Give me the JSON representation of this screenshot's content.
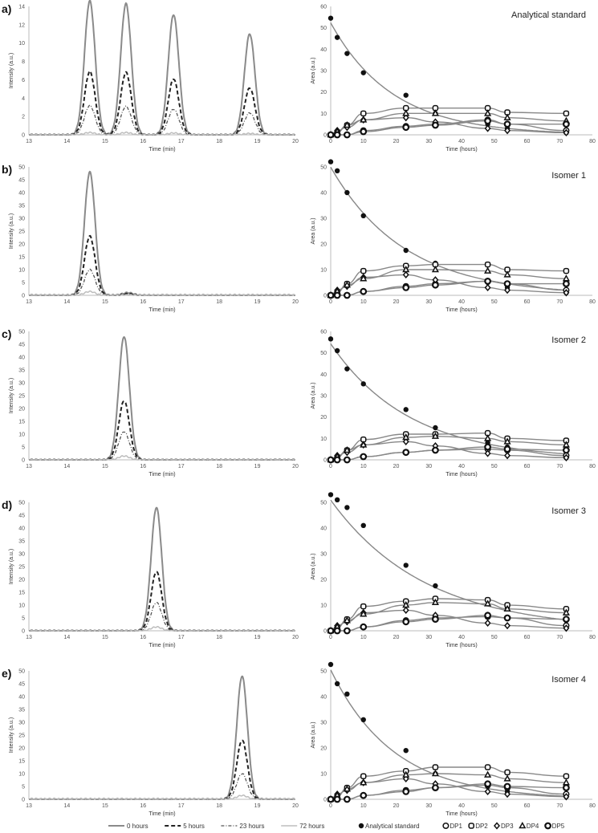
{
  "legend_left": [
    "0 hours",
    "5 hours",
    "23 hours",
    "72 hours"
  ],
  "legend_right": [
    "Analytical standard",
    "DP1",
    "DP2",
    "DP3",
    "DP4",
    "DP5"
  ],
  "colors": {
    "h0": "#8a8a8a",
    "h5": "#222222",
    "h23": "#555555",
    "h72": "#bdbdbd",
    "fit": "#888888",
    "marker": "#111111"
  },
  "chart_data": [
    {
      "type": "line",
      "panel": "a)",
      "xlabel": "Time (min)",
      "ylabel": "Intensity (a.u.)",
      "xlim": [
        13,
        20
      ],
      "ylim": [
        0,
        14
      ],
      "yticks": [
        0,
        2,
        4,
        6,
        8,
        10,
        12,
        14
      ],
      "xticks": [
        13,
        14,
        15,
        16,
        17,
        18,
        19,
        20
      ],
      "peaks": [
        14.6,
        15.55,
        16.8,
        18.8
      ],
      "series": [
        {
          "name": "0 hours",
          "heights": [
            14.6,
            14.3,
            13.1,
            11
          ]
        },
        {
          "name": "5 hours",
          "heights": [
            6.9,
            6.8,
            6.1,
            5.1
          ]
        },
        {
          "name": "23 hours",
          "heights": [
            3.2,
            3.1,
            2.8,
            2.4
          ]
        },
        {
          "name": "72 hours",
          "heights": [
            0.25,
            0.25,
            0.2,
            0.15
          ]
        }
      ]
    },
    {
      "type": "scatter",
      "title": "Analytical standard",
      "xlabel": "Time (hours)",
      "ylabel": "Area (a.u.)",
      "xlim": [
        0,
        80
      ],
      "ylim": [
        0,
        60
      ],
      "yticks": [
        0,
        10,
        20,
        30,
        40,
        50,
        60
      ],
      "xticks": [
        0,
        10,
        20,
        30,
        40,
        50,
        60,
        70,
        80
      ],
      "x": [
        0,
        2,
        5,
        10,
        23,
        32,
        48,
        54,
        72
      ],
      "series": [
        {
          "name": "Analytical standard",
          "values": [
            54.5,
            45.5,
            38,
            29,
            18.5,
            10,
            5,
            3,
            1
          ]
        },
        {
          "name": "DP1",
          "values": [
            0,
            0,
            0,
            2,
            4,
            5,
            7,
            5,
            2
          ]
        },
        {
          "name": "DP2",
          "values": [
            0,
            1,
            4.5,
            10,
            12.5,
            12.5,
            12.5,
            10.5,
            10
          ]
        },
        {
          "name": "DP3",
          "values": [
            0,
            2,
            3.5,
            7,
            8,
            6,
            3,
            2,
            1
          ]
        },
        {
          "name": "DP4",
          "values": [
            0,
            1.5,
            4.5,
            7,
            10,
            10,
            10,
            8,
            6.5
          ]
        },
        {
          "name": "DP5",
          "values": [
            0,
            0,
            0,
            1.5,
            3.5,
            4.5,
            6.5,
            5,
            5
          ]
        }
      ]
    },
    {
      "type": "line",
      "panel": "b)",
      "xlabel": "Time (min)",
      "ylabel": "Intensity (a.u.)",
      "xlim": [
        13,
        20
      ],
      "ylim": [
        0,
        50
      ],
      "yticks": [
        0,
        5,
        10,
        15,
        20,
        25,
        30,
        35,
        40,
        45,
        50
      ],
      "xticks": [
        13,
        14,
        15,
        16,
        17,
        18,
        19,
        20
      ],
      "peaks": [
        14.6,
        15.6
      ],
      "series": [
        {
          "name": "0 hours",
          "heights": [
            48,
            1
          ]
        },
        {
          "name": "5 hours",
          "heights": [
            23,
            0.5
          ]
        },
        {
          "name": "23 hours",
          "heights": [
            10,
            0.3
          ]
        },
        {
          "name": "72 hours",
          "heights": [
            1.5,
            0.1
          ]
        }
      ]
    },
    {
      "type": "scatter",
      "title": "Isomer 1",
      "xlabel": "Time (hours)",
      "ylabel": "Area (a.u.)",
      "xlim": [
        0,
        80
      ],
      "ylim": [
        0,
        50
      ],
      "yticks": [
        0,
        10,
        20,
        30,
        40,
        50
      ],
      "xticks": [
        0,
        10,
        20,
        30,
        40,
        50,
        60,
        70,
        80
      ],
      "x": [
        0,
        2,
        5,
        10,
        23,
        32,
        48,
        54,
        72
      ],
      "series": [
        {
          "name": "Analytical standard",
          "values": [
            52,
            48.5,
            40,
            31,
            17.5,
            12.5,
            5,
            3,
            1
          ]
        },
        {
          "name": "DP1",
          "values": [
            0,
            0,
            0,
            1.5,
            3.5,
            4.5,
            5.5,
            4.5,
            2
          ]
        },
        {
          "name": "DP2",
          "values": [
            0,
            1,
            4.5,
            9.5,
            11.5,
            12,
            12,
            10,
            9.5
          ]
        },
        {
          "name": "DP3",
          "values": [
            0,
            2,
            3.5,
            7,
            8,
            6,
            3,
            2,
            1
          ]
        },
        {
          "name": "DP4",
          "values": [
            0,
            1.5,
            4,
            6.5,
            10,
            10,
            9.5,
            8,
            6.5
          ]
        },
        {
          "name": "DP5",
          "values": [
            0,
            0,
            0,
            1.5,
            3,
            4,
            5.5,
            4.5,
            4.5
          ]
        }
      ]
    },
    {
      "type": "line",
      "panel": "c)",
      "xlabel": "Time (min)",
      "ylabel": "Intensity (a.u.)",
      "xlim": [
        13,
        20
      ],
      "ylim": [
        0,
        50
      ],
      "yticks": [
        0,
        5,
        10,
        15,
        20,
        25,
        30,
        35,
        40,
        45,
        50
      ],
      "xticks": [
        13,
        14,
        15,
        16,
        17,
        18,
        19,
        20
      ],
      "peaks": [
        15.5
      ],
      "series": [
        {
          "name": "0 hours",
          "heights": [
            48
          ]
        },
        {
          "name": "5 hours",
          "heights": [
            23
          ]
        },
        {
          "name": "23 hours",
          "heights": [
            11
          ]
        },
        {
          "name": "72 hours",
          "heights": [
            1.5
          ]
        }
      ]
    },
    {
      "type": "scatter",
      "title": "Isomer 2",
      "xlabel": "Time (hours)",
      "ylabel": "Area (a.u.)",
      "xlim": [
        0,
        80
      ],
      "ylim": [
        0,
        60
      ],
      "yticks": [
        0,
        10,
        20,
        30,
        40,
        50,
        60
      ],
      "xticks": [
        0,
        10,
        20,
        30,
        40,
        50,
        60,
        70,
        80
      ],
      "x": [
        0,
        2,
        5,
        10,
        23,
        32,
        48,
        54,
        72
      ],
      "series": [
        {
          "name": "Analytical standard",
          "values": [
            56.5,
            51,
            42.5,
            35.5,
            23.5,
            15,
            8,
            6,
            1
          ]
        },
        {
          "name": "DP1",
          "values": [
            0,
            0,
            0,
            1.5,
            3.5,
            4.5,
            5,
            4.5,
            2
          ]
        },
        {
          "name": "DP2",
          "values": [
            0,
            1,
            4.5,
            9.5,
            12,
            12,
            12.5,
            10,
            9
          ]
        },
        {
          "name": "DP3",
          "values": [
            0,
            2,
            3.5,
            7,
            8.5,
            6.5,
            3,
            2,
            1
          ]
        },
        {
          "name": "DP4",
          "values": [
            0,
            1.5,
            4.5,
            7,
            10.5,
            11,
            10,
            8.5,
            7
          ]
        },
        {
          "name": "DP5",
          "values": [
            0,
            0,
            0,
            1.5,
            3.5,
            4.5,
            6,
            5,
            4.5
          ]
        }
      ]
    },
    {
      "type": "line",
      "panel": "d)",
      "xlabel": "Time (min)",
      "ylabel": "Intensity (a.u.)",
      "xlim": [
        13,
        20
      ],
      "ylim": [
        0,
        50
      ],
      "yticks": [
        0,
        5,
        10,
        15,
        20,
        25,
        30,
        35,
        40,
        45,
        50
      ],
      "xticks": [
        13,
        14,
        15,
        16,
        17,
        18,
        19,
        20
      ],
      "peaks": [
        16.35
      ],
      "series": [
        {
          "name": "0 hours",
          "heights": [
            48
          ]
        },
        {
          "name": "5 hours",
          "heights": [
            23
          ]
        },
        {
          "name": "23 hours",
          "heights": [
            11
          ]
        },
        {
          "name": "72 hours",
          "heights": [
            1.5
          ]
        }
      ]
    },
    {
      "type": "scatter",
      "title": "Isomer 3",
      "xlabel": "Time (hours)",
      "ylabel": "Area (a.u.)",
      "xlim": [
        0,
        80
      ],
      "ylim": [
        0,
        50
      ],
      "yticks": [
        0,
        10,
        20,
        30,
        40,
        50
      ],
      "xticks": [
        0,
        10,
        20,
        30,
        40,
        50,
        60,
        70,
        80
      ],
      "x": [
        0,
        2,
        5,
        10,
        23,
        32,
        48,
        54,
        72
      ],
      "series": [
        {
          "name": "Analytical standard",
          "values": [
            53,
            51,
            48,
            41,
            25.5,
            17.5,
            12,
            9,
            4
          ]
        },
        {
          "name": "DP1",
          "values": [
            0,
            0,
            0,
            1.5,
            4,
            5,
            5.5,
            5,
            2
          ]
        },
        {
          "name": "DP2",
          "values": [
            0,
            1,
            4.5,
            9.5,
            11.5,
            12.5,
            12,
            10,
            8.5
          ]
        },
        {
          "name": "DP3",
          "values": [
            0,
            2,
            3.5,
            7,
            8,
            6,
            3,
            2,
            1
          ]
        },
        {
          "name": "DP4",
          "values": [
            0,
            1.5,
            4,
            6.5,
            10,
            11,
            10.5,
            8.5,
            7
          ]
        },
        {
          "name": "DP5",
          "values": [
            0,
            0,
            0,
            1.5,
            3.5,
            4.5,
            6,
            5,
            4.5
          ]
        }
      ]
    },
    {
      "type": "line",
      "panel": "e)",
      "xlabel": "Time (min)",
      "ylabel": "Intensity (a.u.)",
      "xlim": [
        13,
        20
      ],
      "ylim": [
        0,
        50
      ],
      "yticks": [
        0,
        5,
        10,
        15,
        20,
        25,
        30,
        35,
        40,
        45,
        50
      ],
      "xticks": [
        13,
        14,
        15,
        16,
        17,
        18,
        19,
        20
      ],
      "peaks": [
        18.6
      ],
      "series": [
        {
          "name": "0 hours",
          "heights": [
            48
          ]
        },
        {
          "name": "5 hours",
          "heights": [
            23
          ]
        },
        {
          "name": "23 hours",
          "heights": [
            10
          ]
        },
        {
          "name": "72 hours",
          "heights": [
            1.5
          ]
        }
      ]
    },
    {
      "type": "scatter",
      "title": "Isomer 4",
      "xlabel": "Time (hours)",
      "ylabel": "Area (a.u.)",
      "xlim": [
        0,
        80
      ],
      "ylim": [
        0,
        50
      ],
      "yticks": [
        0,
        10,
        20,
        30,
        40,
        50
      ],
      "xticks": [
        0,
        10,
        20,
        30,
        40,
        50,
        60,
        70,
        80
      ],
      "x": [
        0,
        2,
        5,
        10,
        23,
        32,
        48,
        54,
        72
      ],
      "series": [
        {
          "name": "Analytical standard",
          "values": [
            52.5,
            45,
            41,
            31,
            19,
            10,
            5,
            3,
            1
          ]
        },
        {
          "name": "DP1",
          "values": [
            0,
            0,
            0,
            1.5,
            3.5,
            4.5,
            5.5,
            4.5,
            2
          ]
        },
        {
          "name": "DP2",
          "values": [
            0,
            1,
            4.5,
            9,
            11,
            12.5,
            12.5,
            10.5,
            9
          ]
        },
        {
          "name": "DP3",
          "values": [
            0,
            2,
            3.5,
            6.5,
            8,
            6,
            3,
            2,
            1
          ]
        },
        {
          "name": "DP4",
          "values": [
            0,
            1.5,
            4,
            6.5,
            9.5,
            10,
            9.5,
            8,
            6.5
          ]
        },
        {
          "name": "DP5",
          "values": [
            0,
            0,
            0,
            1.5,
            3,
            4.5,
            6,
            5,
            4.5
          ]
        }
      ]
    }
  ]
}
